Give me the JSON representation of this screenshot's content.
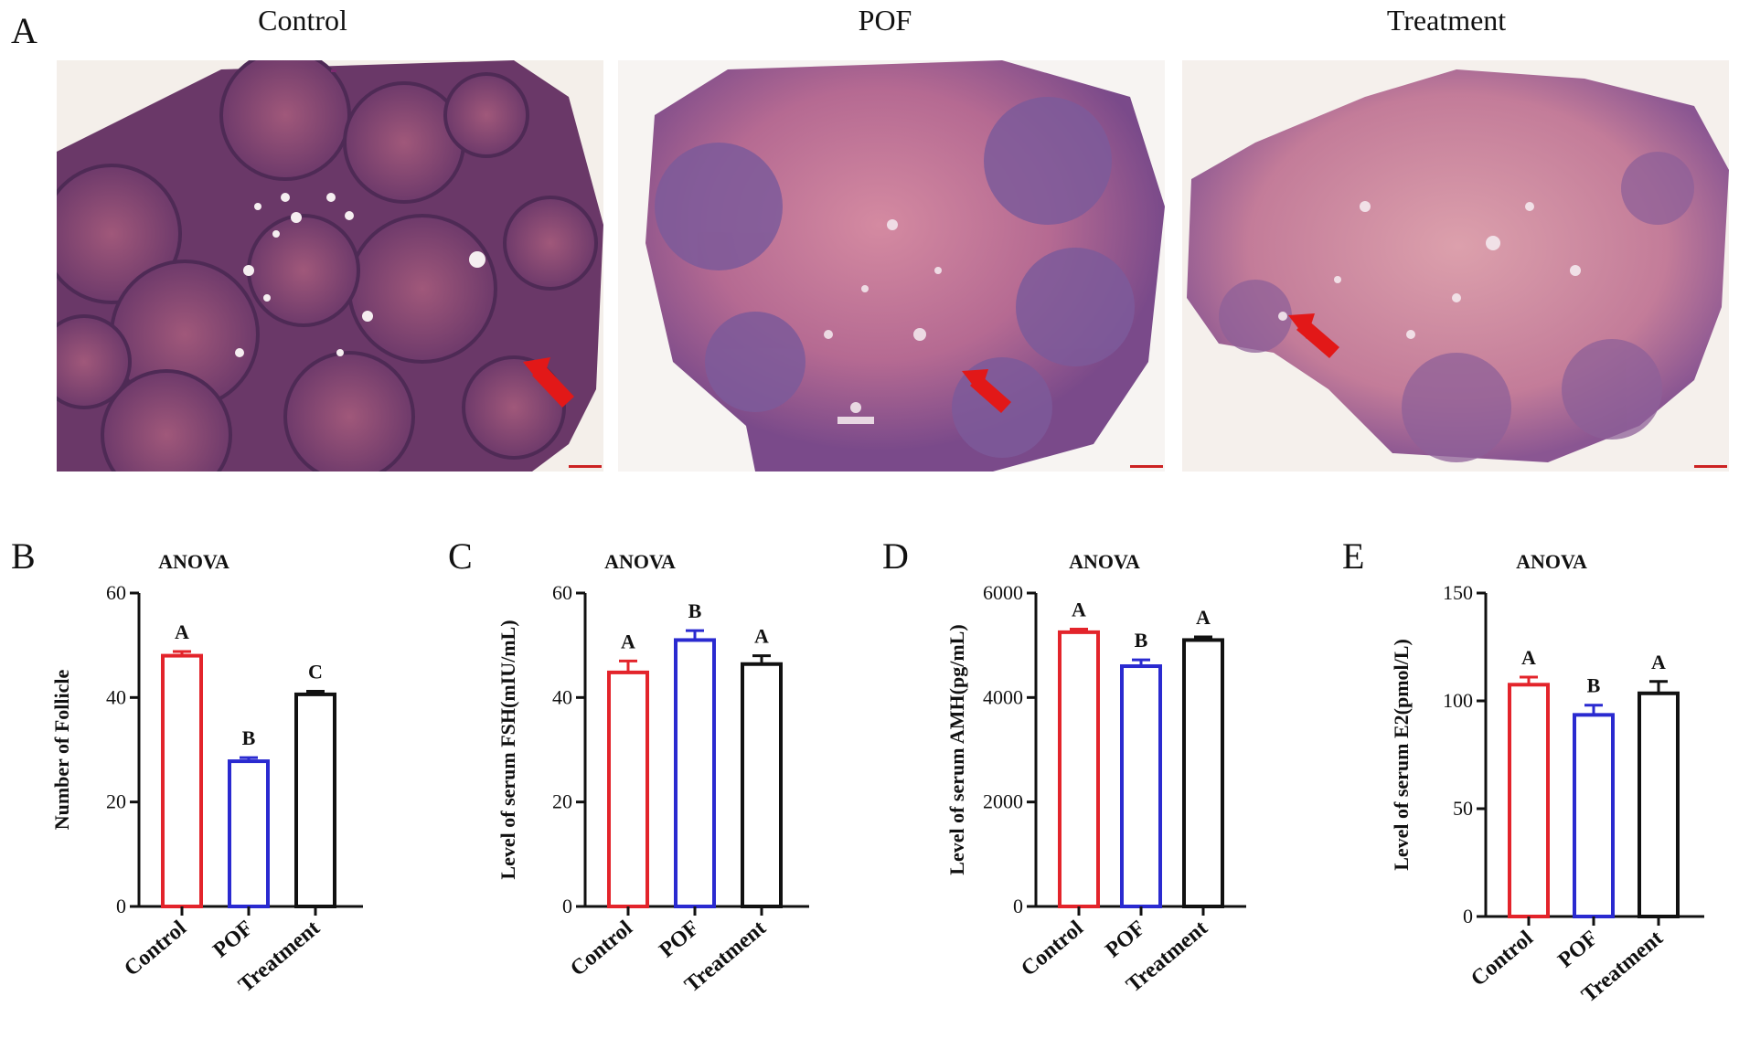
{
  "panel_a": {
    "letter": "A",
    "images": [
      {
        "title": "Control"
      },
      {
        "title": "POF"
      },
      {
        "title": "Treatment"
      }
    ]
  },
  "chart_data": [
    {
      "type": "bar",
      "panel": "B",
      "title": "ANOVA",
      "xlabel": "",
      "ylabel": "Number of  Follicle",
      "categories": [
        "Control",
        "POF",
        "Treatment"
      ],
      "values": [
        48,
        27.8,
        40.6
      ],
      "errors": [
        0.8,
        0.7,
        0.6
      ],
      "significance": [
        "A",
        "B",
        "C"
      ],
      "colors": [
        "#e3242b",
        "#2a2ad0",
        "#111111"
      ],
      "ylim": [
        0,
        60
      ],
      "yticks": [
        0,
        20,
        40,
        60
      ]
    },
    {
      "type": "bar",
      "panel": "C",
      "title": "ANOVA",
      "xlabel": "",
      "ylabel": "Level of serum FSH(mIU/mL)",
      "categories": [
        "Control",
        "POF",
        "Treatment"
      ],
      "values": [
        44.8,
        51,
        46.4
      ],
      "errors": [
        2.2,
        1.8,
        1.6
      ],
      "significance": [
        "A",
        "B",
        "A"
      ],
      "colors": [
        "#e3242b",
        "#2a2ad0",
        "#111111"
      ],
      "ylim": [
        0,
        60
      ],
      "yticks": [
        0,
        20,
        40,
        60
      ]
    },
    {
      "type": "bar",
      "panel": "D",
      "title": "ANOVA",
      "xlabel": "",
      "ylabel": "Level of serum AMH(pg/mL)",
      "categories": [
        "Control",
        "POF",
        "Treatment"
      ],
      "values": [
        5250,
        4600,
        5100
      ],
      "errors": [
        60,
        120,
        60
      ],
      "significance": [
        "A",
        "B",
        "A"
      ],
      "colors": [
        "#e3242b",
        "#2a2ad0",
        "#111111"
      ],
      "ylim": [
        0,
        6000
      ],
      "yticks": [
        0,
        2000,
        4000,
        6000
      ]
    },
    {
      "type": "bar",
      "panel": "E",
      "title": "ANOVA",
      "xlabel": "",
      "ylabel": "Level of serum E2(pmol/L)",
      "categories": [
        "Control",
        "POF",
        "Treatment"
      ],
      "values": [
        107.5,
        93.5,
        103.5
      ],
      "errors": [
        3.5,
        4.5,
        5.5
      ],
      "significance": [
        "A",
        "B",
        "A"
      ],
      "colors": [
        "#e3242b",
        "#2a2ad0",
        "#111111"
      ],
      "ylim": [
        0,
        150
      ],
      "yticks": [
        0,
        50,
        100,
        150
      ]
    }
  ]
}
